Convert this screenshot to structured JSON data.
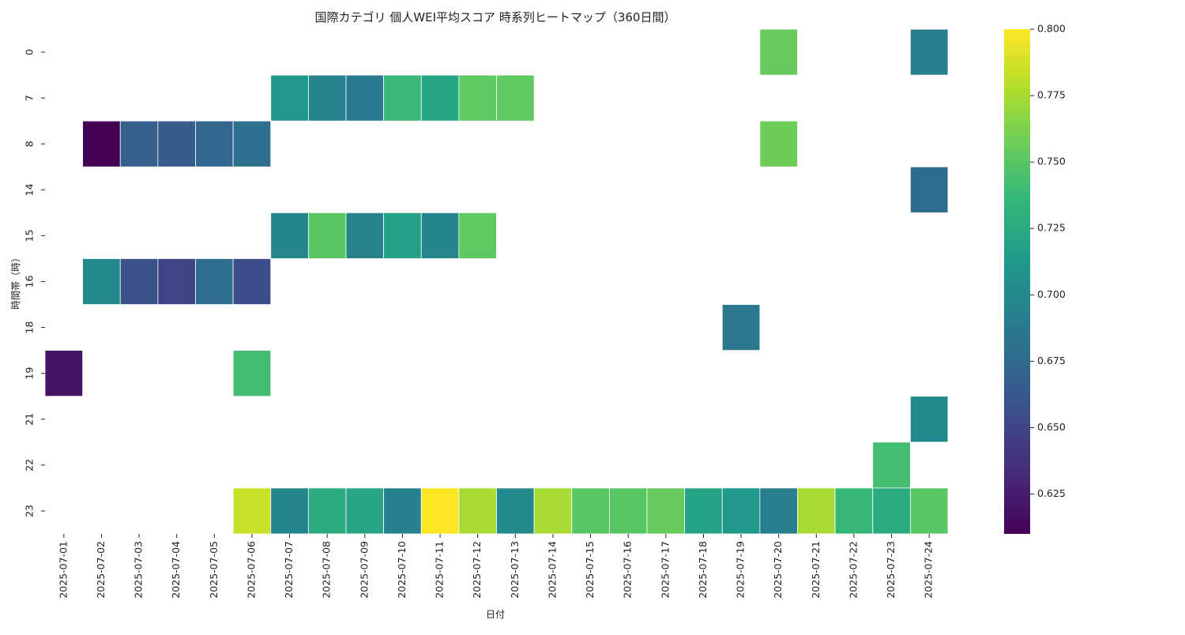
{
  "chart_data": {
    "type": "heatmap",
    "title": "国際カテゴリ 個人WEI平均スコア 時系列ヒートマップ（360日間）",
    "xlabel": "日付",
    "ylabel": "時間帯（時）",
    "x": [
      "2025-07-01",
      "2025-07-02",
      "2025-07-03",
      "2025-07-04",
      "2025-07-05",
      "2025-07-06",
      "2025-07-07",
      "2025-07-08",
      "2025-07-09",
      "2025-07-10",
      "2025-07-11",
      "2025-07-12",
      "2025-07-13",
      "2025-07-14",
      "2025-07-15",
      "2025-07-16",
      "2025-07-17",
      "2025-07-18",
      "2025-07-19",
      "2025-07-20",
      "2025-07-21",
      "2025-07-22",
      "2025-07-23",
      "2025-07-24"
    ],
    "y": [
      "0",
      "7",
      "8",
      "14",
      "15",
      "16",
      "18",
      "19",
      "21",
      "22",
      "23"
    ],
    "values": [
      [
        null,
        null,
        null,
        null,
        null,
        null,
        null,
        null,
        null,
        null,
        null,
        null,
        null,
        null,
        null,
        null,
        null,
        null,
        null,
        0.755,
        null,
        null,
        null,
        0.69
      ],
      [
        null,
        null,
        null,
        null,
        null,
        null,
        0.712,
        0.695,
        0.688,
        0.738,
        0.722,
        0.752,
        0.752,
        null,
        null,
        null,
        null,
        null,
        null,
        null,
        null,
        null,
        null,
        null
      ],
      [
        null,
        0.61,
        0.667,
        0.665,
        0.672,
        0.68,
        null,
        null,
        null,
        null,
        null,
        null,
        null,
        null,
        null,
        null,
        null,
        null,
        null,
        0.757,
        null,
        null,
        null,
        null
      ],
      [
        null,
        null,
        null,
        null,
        null,
        null,
        null,
        null,
        null,
        null,
        null,
        null,
        null,
        null,
        null,
        null,
        null,
        null,
        null,
        null,
        null,
        null,
        null,
        0.677
      ],
      [
        null,
        null,
        null,
        null,
        null,
        null,
        0.697,
        0.75,
        0.695,
        0.718,
        0.697,
        0.752,
        null,
        null,
        null,
        null,
        null,
        null,
        null,
        null,
        null,
        null,
        null,
        null
      ],
      [
        null,
        0.7,
        0.657,
        0.648,
        0.678,
        0.655,
        null,
        null,
        null,
        null,
        null,
        null,
        null,
        null,
        null,
        null,
        null,
        null,
        null,
        null,
        null,
        null,
        null,
        null
      ],
      [
        null,
        null,
        null,
        null,
        null,
        null,
        null,
        null,
        null,
        null,
        null,
        null,
        null,
        null,
        null,
        null,
        null,
        null,
        0.687,
        null,
        null,
        null,
        null,
        null
      ],
      [
        0.62,
        null,
        null,
        null,
        null,
        0.742,
        null,
        null,
        null,
        null,
        null,
        null,
        null,
        null,
        null,
        null,
        null,
        null,
        null,
        null,
        null,
        null,
        null,
        null
      ],
      [
        null,
        null,
        null,
        null,
        null,
        null,
        null,
        null,
        null,
        null,
        null,
        null,
        null,
        null,
        null,
        null,
        null,
        null,
        null,
        null,
        null,
        null,
        null,
        0.7
      ],
      [
        null,
        null,
        null,
        null,
        null,
        null,
        null,
        null,
        null,
        null,
        null,
        null,
        null,
        null,
        null,
        null,
        null,
        null,
        null,
        null,
        null,
        null,
        0.742,
        null
      ],
      [
        null,
        null,
        null,
        null,
        null,
        0.785,
        0.697,
        0.727,
        0.722,
        0.693,
        0.8,
        0.775,
        0.7,
        0.775,
        0.75,
        0.75,
        0.755,
        0.72,
        0.712,
        0.69,
        0.775,
        0.737,
        0.727,
        0.75
      ]
    ],
    "colorbar": {
      "colormap": "viridis",
      "vmin": 0.61,
      "vmax": 0.8,
      "ticks": [
        "0.625",
        "0.650",
        "0.675",
        "0.700",
        "0.725",
        "0.750",
        "0.775",
        "0.800"
      ]
    }
  }
}
